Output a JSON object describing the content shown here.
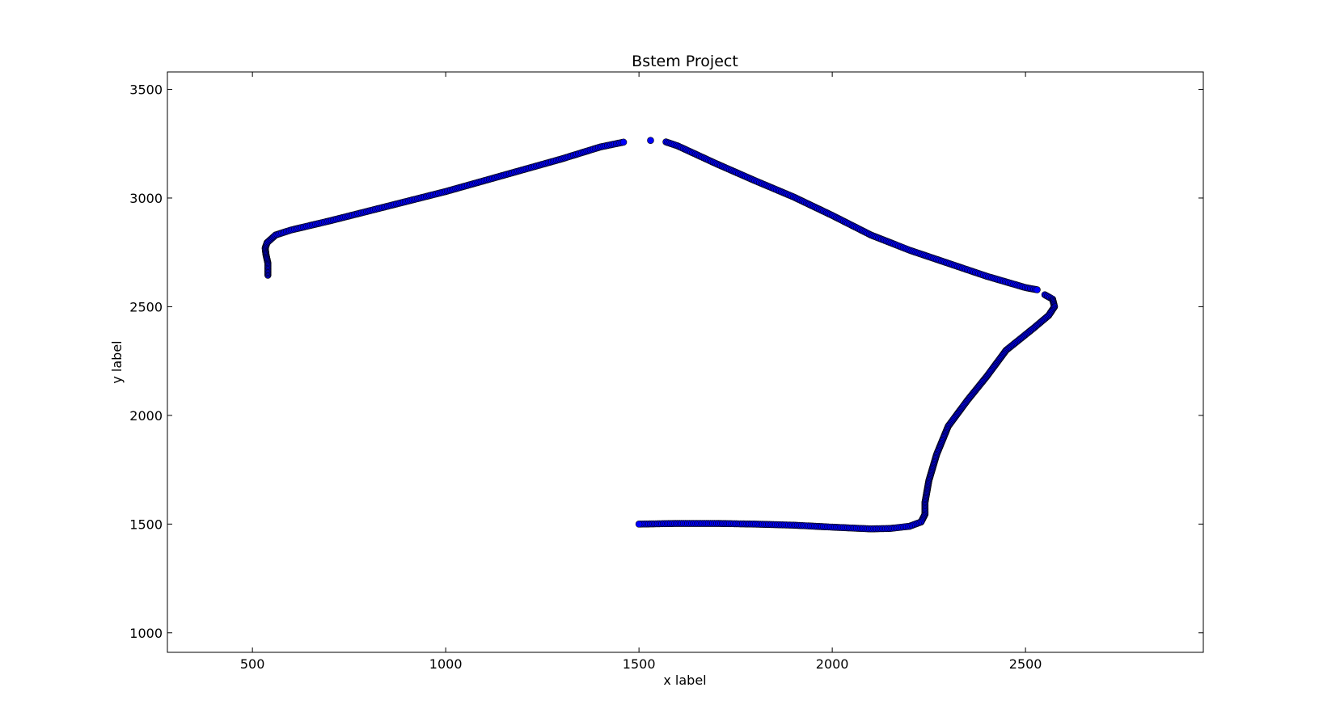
{
  "chart_data": {
    "type": "scatter",
    "title": "Bstem Project",
    "xlabel": "x label",
    "ylabel": "y label",
    "xlim": [
      280,
      2960
    ],
    "ylim": [
      910,
      3580
    ],
    "x_ticks": [
      500,
      1000,
      1500,
      2000,
      2500
    ],
    "y_ticks": [
      1000,
      1500,
      2000,
      2500,
      3000,
      3500
    ],
    "x_tick_labels": [
      "500",
      "1000",
      "1500",
      "2000",
      "2500"
    ],
    "y_tick_labels": [
      "1000",
      "1500",
      "2000",
      "2500",
      "3000",
      "3500"
    ],
    "grid": false,
    "marker_color": "#0000ff",
    "marker_edge_color": "#000000",
    "series": [
      {
        "path": [
          [
            540,
            2645
          ],
          [
            540,
            2700
          ],
          [
            535,
            2740
          ],
          [
            533,
            2770
          ],
          [
            538,
            2795
          ],
          [
            560,
            2830
          ],
          [
            600,
            2853
          ],
          [
            700,
            2895
          ],
          [
            800,
            2940
          ],
          [
            900,
            2985
          ],
          [
            1000,
            3030
          ],
          [
            1100,
            3080
          ],
          [
            1200,
            3130
          ],
          [
            1300,
            3180
          ],
          [
            1400,
            3235
          ],
          [
            1460,
            3257
          ]
        ],
        "sample_step": 5
      },
      {
        "path": [
          [
            1530,
            3265
          ]
        ],
        "sample_step": 5
      },
      {
        "path": [
          [
            1570,
            3258
          ],
          [
            1600,
            3240
          ],
          [
            1700,
            3158
          ],
          [
            1800,
            3080
          ],
          [
            1900,
            3005
          ],
          [
            2000,
            2920
          ],
          [
            2100,
            2830
          ],
          [
            2200,
            2760
          ],
          [
            2300,
            2700
          ],
          [
            2400,
            2640
          ],
          [
            2500,
            2588
          ],
          [
            2530,
            2578
          ]
        ],
        "sample_step": 5
      },
      {
        "path": [
          [
            2550,
            2555
          ],
          [
            2570,
            2535
          ],
          [
            2575,
            2500
          ],
          [
            2560,
            2460
          ],
          [
            2520,
            2400
          ],
          [
            2450,
            2300
          ],
          [
            2400,
            2180
          ],
          [
            2350,
            2070
          ],
          [
            2300,
            1950
          ],
          [
            2270,
            1820
          ],
          [
            2250,
            1700
          ],
          [
            2240,
            1600
          ],
          [
            2240,
            1545
          ],
          [
            2230,
            1510
          ],
          [
            2200,
            1490
          ],
          [
            2150,
            1480
          ],
          [
            2100,
            1478
          ],
          [
            2000,
            1486
          ],
          [
            1900,
            1495
          ],
          [
            1800,
            1500
          ],
          [
            1700,
            1503
          ],
          [
            1600,
            1503
          ],
          [
            1500,
            1500
          ]
        ],
        "sample_step": 5
      }
    ]
  }
}
